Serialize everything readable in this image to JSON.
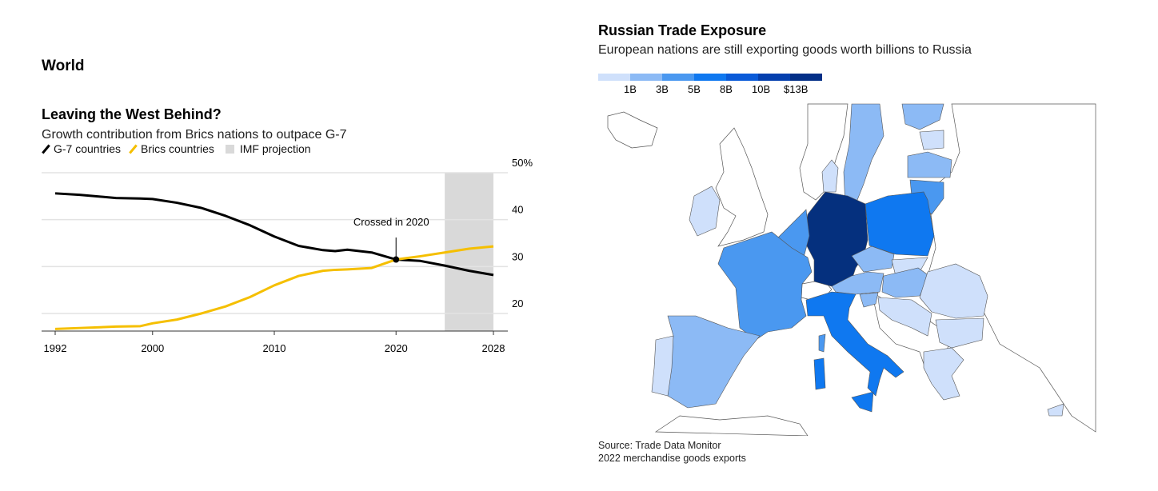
{
  "section_label": "World",
  "chart_data": [
    {
      "type": "line",
      "title": "Leaving the West Behind?",
      "subtitle": "Growth contribution from Brics nations to outpace G-7",
      "legend": [
        "G-7 countries",
        "Brics countries",
        "IMF projection"
      ],
      "legend_placement": "top-left",
      "colors": {
        "g7": "#000000",
        "brics": "#f5bf00",
        "projection": "#d9d9d9"
      },
      "x": [
        1992,
        1994,
        1997,
        1999,
        2000,
        2002,
        2004,
        2006,
        2008,
        2010,
        2012,
        2014,
        2015,
        2016,
        2018,
        2020,
        2022,
        2024,
        2026,
        2028
      ],
      "series": [
        {
          "name": "G-7 countries",
          "values": [
            45.6,
            45.3,
            44.6,
            44.5,
            44.4,
            43.6,
            42.5,
            40.8,
            38.8,
            36.4,
            34.4,
            33.5,
            33.3,
            33.6,
            33.0,
            31.5,
            31.2,
            30.2,
            29.1,
            28.2
          ]
        },
        {
          "name": "Brics countries",
          "values": [
            16.7,
            16.9,
            17.2,
            17.3,
            17.9,
            18.7,
            20.0,
            21.5,
            23.5,
            26.0,
            28.0,
            29.1,
            29.3,
            29.4,
            29.7,
            31.5,
            32.2,
            33.0,
            33.8,
            34.3
          ]
        }
      ],
      "projection_range": [
        2024,
        2028
      ],
      "annotation": {
        "text": "Crossed in 2020",
        "x": 2020,
        "y": 31.5
      },
      "xticks": [
        "1992",
        "2000",
        "2010",
        "2020",
        "2028"
      ],
      "xtick_values": [
        1992,
        2000,
        2010,
        2020,
        2028
      ],
      "yticks": [
        "50%",
        "40",
        "30",
        "20"
      ],
      "ytick_values": [
        50,
        40,
        30,
        20
      ],
      "xlim": [
        1992,
        2028
      ],
      "ylim": [
        16.4,
        50
      ],
      "grid": true
    },
    {
      "type": "choropleth",
      "title": "Russian Trade Exposure",
      "subtitle": "European nations are still exporting goods worth billions to Russia",
      "legend_labels": [
        "1B",
        "3B",
        "5B",
        "8B",
        "10B",
        "$13B"
      ],
      "legend_colors": [
        "#cfe0fb",
        "#8cbaf5",
        "#4a98f0",
        "#0f78f0",
        "#0a5ad8",
        "#043fae",
        "#032f87"
      ],
      "source": "Source: Trade Data Monitor",
      "note": "2022 merchandise goods exports"
    }
  ]
}
